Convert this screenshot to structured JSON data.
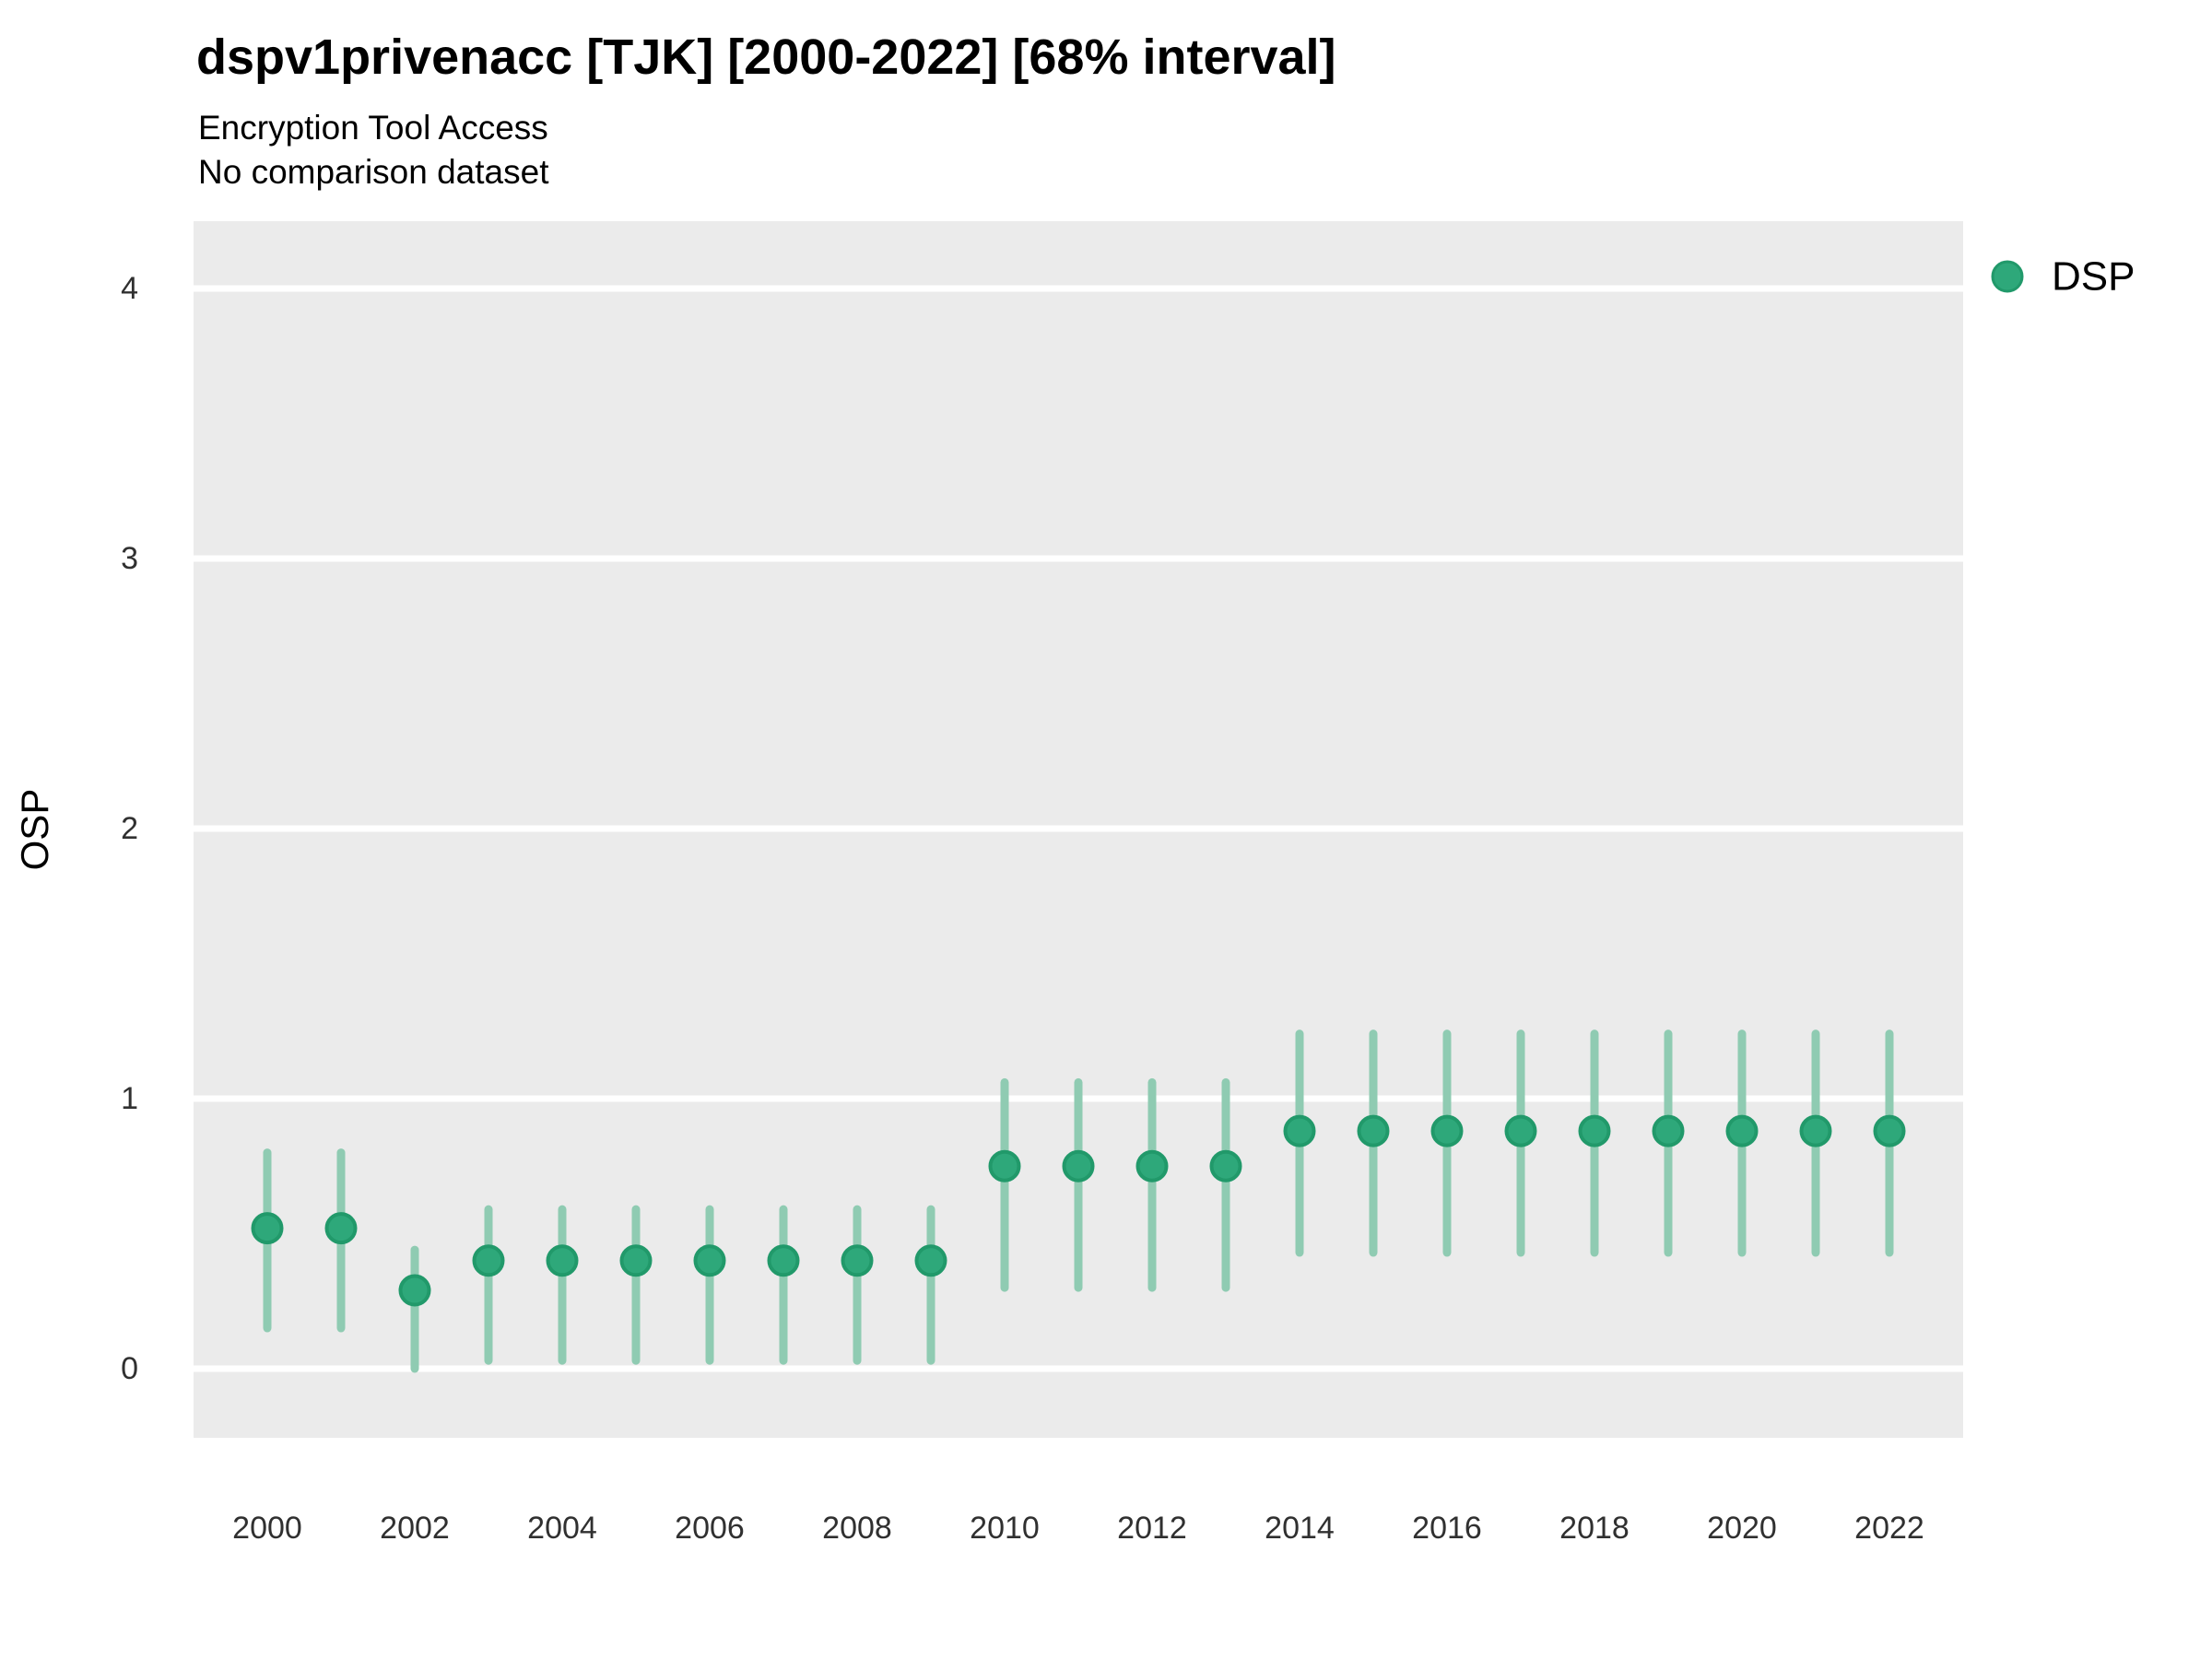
{
  "header": {
    "title": "dspv1privenacc [TJK] [2000-2022] [68% interval]",
    "subtitle": "Encryption Tool Access",
    "note": "No comparison dataset"
  },
  "legend": {
    "position": "right-top",
    "items": [
      {
        "label": "DSP",
        "swatch": "point-circle",
        "swatch_color": "#2ea87a"
      }
    ]
  },
  "colors": {
    "point": "#2ea87a",
    "point_outline": "#21996a",
    "interval_line": "#8fcbb2",
    "panel_background": "#ebebeb",
    "gridline": "#ffffff",
    "tick_text": "#303030",
    "axis_title_text": "#000000",
    "title_text": "#000000"
  },
  "chart_data": {
    "type": "scatter",
    "subtype": "pointrange",
    "title": "dspv1privenacc [TJK] [2000-2022] [68% interval]",
    "subtitle": "Encryption Tool Access",
    "annotation": "No comparison dataset",
    "interval_level": "68%",
    "xlabel": "",
    "ylabel": "OSP",
    "grid": "horizontal-major-only",
    "legend_position": "right",
    "xlim": [
      1999,
      2023
    ],
    "ylim": [
      -0.25,
      4.33
    ],
    "x_ticks": [
      2000,
      2002,
      2004,
      2006,
      2008,
      2010,
      2012,
      2014,
      2016,
      2018,
      2020,
      2022
    ],
    "y_ticks": [
      0,
      1,
      2,
      3,
      4
    ],
    "series": [
      {
        "name": "DSP",
        "x": [
          2000,
          2001,
          2002,
          2003,
          2004,
          2005,
          2006,
          2007,
          2008,
          2009,
          2010,
          2011,
          2012,
          2013,
          2014,
          2015,
          2016,
          2017,
          2018,
          2019,
          2020,
          2021,
          2022
        ],
        "values": [
          0.52,
          0.52,
          0.29,
          0.4,
          0.4,
          0.4,
          0.4,
          0.4,
          0.4,
          0.4,
          0.75,
          0.75,
          0.75,
          0.75,
          0.88,
          0.88,
          0.88,
          0.88,
          0.88,
          0.88,
          0.88,
          0.88,
          0.88
        ],
        "interval_low": [
          0.15,
          0.15,
          0.0,
          0.03,
          0.03,
          0.03,
          0.03,
          0.03,
          0.03,
          0.03,
          0.3,
          0.3,
          0.3,
          0.3,
          0.43,
          0.43,
          0.43,
          0.43,
          0.43,
          0.43,
          0.43,
          0.43,
          0.43
        ],
        "interval_high": [
          0.8,
          0.8,
          0.44,
          0.59,
          0.59,
          0.59,
          0.59,
          0.59,
          0.59,
          0.59,
          1.06,
          1.06,
          1.06,
          1.06,
          1.24,
          1.24,
          1.24,
          1.24,
          1.24,
          1.24,
          1.24,
          1.24,
          1.24
        ]
      }
    ]
  }
}
